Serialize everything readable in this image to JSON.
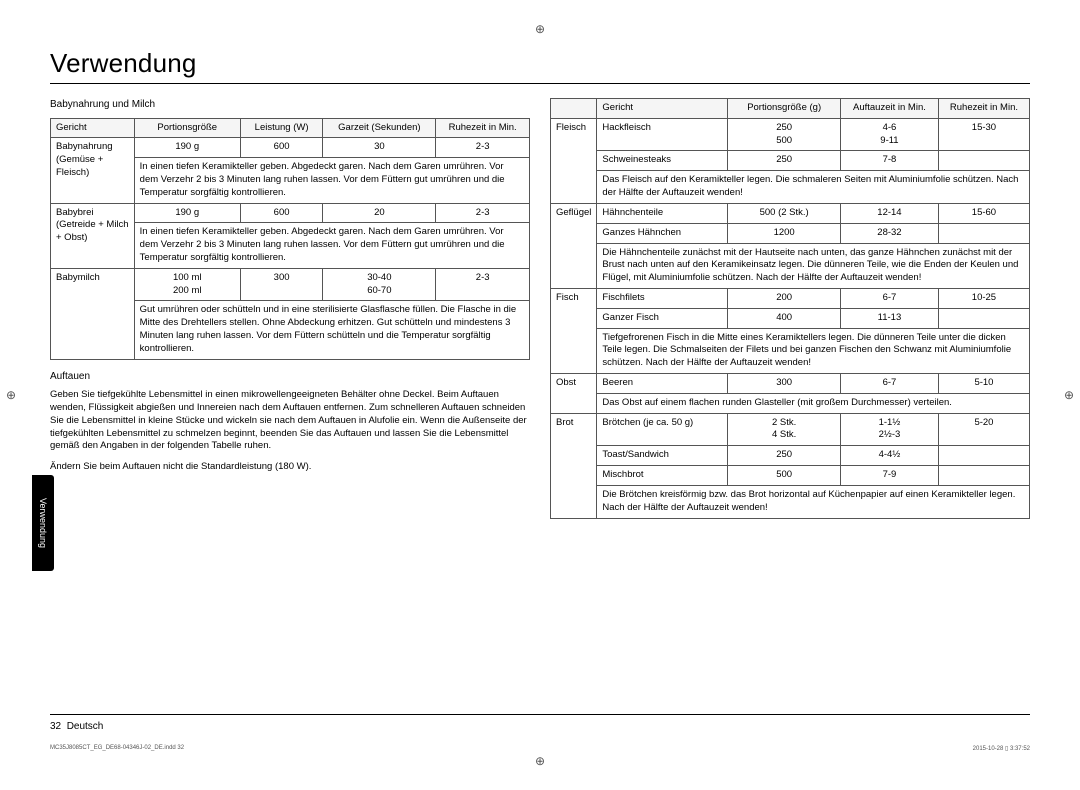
{
  "page": {
    "title": "Verwendung",
    "sidetab": "Verwendung",
    "footer_page": "32",
    "footer_lang": "Deutsch",
    "print_left": "MC35J8085CT_EG_DE68-04346J-02_DE.indd   32",
    "print_right": "2015-10-28   ▯ 3:37:52"
  },
  "left": {
    "heading": "Babynahrung und Milch",
    "table": {
      "headers": [
        "Gericht",
        "Portionsgröße",
        "Leistung (W)",
        "Garzeit (Sekunden)",
        "Ruhezeit in Min."
      ],
      "rows": [
        {
          "dish": "Babynahrung (Gemüse + Fleisch)",
          "portion": "190 g",
          "power": "600",
          "time": "30",
          "rest": "2-3",
          "note": "In einen tiefen Keramikteller geben. Abgedeckt garen. Nach dem Garen umrühren. Vor dem Verzehr 2 bis 3 Minuten lang ruhen lassen. Vor dem Füttern gut umrühren und die Temperatur sorgfältig kontrollieren."
        },
        {
          "dish": "Babybrei (Getreide + Milch + Obst)",
          "portion": "190 g",
          "power": "600",
          "time": "20",
          "rest": "2-3",
          "note": "In einen tiefen Keramikteller geben. Abgedeckt garen. Nach dem Garen umrühren. Vor dem Verzehr 2 bis 3 Minuten lang ruhen lassen. Vor dem Füttern gut umrühren und die Temperatur sorgfältig kontrollieren."
        },
        {
          "dish": "Babymilch",
          "portion": "100 ml\n200 ml",
          "power": "300",
          "time": "30-40\n60-70",
          "rest": "2-3",
          "note": "Gut umrühren oder schütteln und in eine sterilisierte Glasflasche füllen. Die Flasche in die Mitte des Drehtellers stellen. Ohne Abdeckung erhitzen. Gut schütteln und mindestens 3 Minuten lang ruhen lassen. Vor dem Füttern schütteln und die Temperatur sorgfältig kontrollieren."
        }
      ]
    },
    "section2_head": "Auftauen",
    "section2_p1": "Geben Sie tiefgekühlte Lebensmittel in einen mikrowellengeeigneten Behälter ohne Deckel. Beim Auftauen wenden, Flüssigkeit abgießen und Innereien nach dem Auftauen entfernen. Zum schnelleren Auftauen schneiden Sie die Lebensmittel in kleine Stücke und wickeln sie nach dem Auftauen in Alufolie ein. Wenn die Außenseite der tiefgekühlten Lebensmittel zu schmelzen beginnt, beenden Sie das Auftauen und lassen Sie die Lebensmittel gemäß den Angaben in der folgenden Tabelle ruhen.",
    "section2_p2": "Ändern Sie beim Auftauen nicht die Standardleistung (180 W)."
  },
  "right": {
    "headers": [
      "",
      "Gericht",
      "Portionsgröße (g)",
      "Auftauzeit in Min.",
      "Ruhezeit in Min."
    ],
    "groups": [
      {
        "cat": "Fleisch",
        "rows": [
          {
            "dish": "Hackfleisch",
            "portion": "250\n500",
            "thaw": "4-6\n9-11",
            "rest": "15-30"
          },
          {
            "dish": "Schweinesteaks",
            "portion": "250",
            "thaw": "7-8",
            "rest": ""
          }
        ],
        "note": "Das Fleisch auf den Keramikteller legen. Die schmaleren Seiten mit Aluminiumfolie schützen. Nach der Hälfte der Auftauzeit wenden!"
      },
      {
        "cat": "Geflügel",
        "rows": [
          {
            "dish": "Hähnchenteile",
            "portion": "500 (2 Stk.)",
            "thaw": "12-14",
            "rest": "15-60"
          },
          {
            "dish": "Ganzes Hähnchen",
            "portion": "1200",
            "thaw": "28-32",
            "rest": ""
          }
        ],
        "note": "Die Hähnchenteile zunächst mit der Hautseite nach unten, das ganze Hähnchen zunächst mit der Brust nach unten auf den Keramikeinsatz legen. Die dünneren Teile, wie die Enden der Keulen und Flügel, mit Aluminiumfolie schützen. Nach der Hälfte der Auftauzeit wenden!"
      },
      {
        "cat": "Fisch",
        "rows": [
          {
            "dish": "Fischfilets",
            "portion": "200",
            "thaw": "6-7",
            "rest": "10-25"
          },
          {
            "dish": "Ganzer Fisch",
            "portion": "400",
            "thaw": "11-13",
            "rest": ""
          }
        ],
        "note": "Tiefgefrorenen Fisch in die Mitte eines Keramiktellers legen. Die dünneren Teile unter die dicken Teile legen. Die Schmalseiten der Filets und bei ganzen Fischen den Schwanz mit Aluminiumfolie schützen. Nach der Hälfte der Auftauzeit wenden!"
      },
      {
        "cat": "Obst",
        "rows": [
          {
            "dish": "Beeren",
            "portion": "300",
            "thaw": "6-7",
            "rest": "5-10"
          }
        ],
        "note": "Das Obst auf einem flachen runden Glasteller (mit großem Durchmesser) verteilen."
      },
      {
        "cat": "Brot",
        "rows": [
          {
            "dish": "Brötchen (je ca. 50 g)",
            "portion": "2 Stk.\n4 Stk.",
            "thaw": "1-1½\n2½-3",
            "rest": "5-20"
          },
          {
            "dish": "Toast/Sandwich",
            "portion": "250",
            "thaw": "4-4½",
            "rest": ""
          },
          {
            "dish": "Mischbrot",
            "portion": "500",
            "thaw": "7-9",
            "rest": ""
          }
        ],
        "note": "Die Brötchen kreisförmig bzw. das Brot horizontal auf Küchenpapier auf einen Keramikteller legen. Nach der Hälfte der Auftauzeit wenden!"
      }
    ]
  }
}
